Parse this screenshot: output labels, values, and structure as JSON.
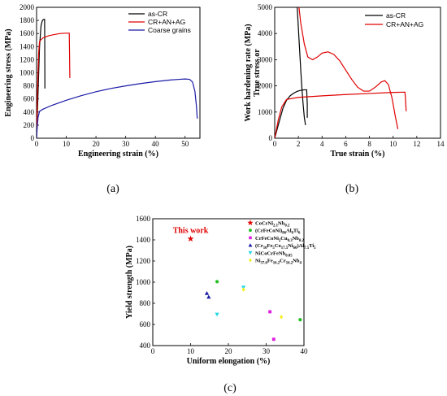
{
  "panel_labels": [
    "(a)",
    "(b)",
    "(c)"
  ],
  "chart_data": [
    {
      "type": "line",
      "xlabel": "Engineering strain (%)",
      "ylabel": "Engineering stress (MPa)",
      "xlim": [
        0,
        55
      ],
      "ylim": [
        0,
        2000
      ],
      "xticks": [
        0,
        10,
        20,
        30,
        40,
        50
      ],
      "yticks": [
        0,
        200,
        400,
        600,
        800,
        1000,
        1200,
        1400,
        1600,
        1800,
        2000
      ],
      "legend_position": "top-right",
      "series": [
        {
          "name": "as-CR",
          "color": "#000000",
          "x": [
            0,
            0.5,
            1.0,
            1.5,
            1.9,
            2.2,
            2.5,
            2.7,
            2.75,
            2.8
          ],
          "y": [
            0,
            700,
            1400,
            1720,
            1790,
            1810,
            1815,
            1815,
            1500,
            760
          ]
        },
        {
          "name": "CR+AN+AG",
          "color": "#e00000",
          "x": [
            0,
            0.3,
            0.7,
            1.0,
            2,
            4,
            6,
            8,
            10,
            11.0,
            11.1,
            11.2
          ],
          "y": [
            0,
            700,
            1300,
            1480,
            1530,
            1565,
            1585,
            1600,
            1605,
            1605,
            1300,
            920
          ]
        },
        {
          "name": "Coarse grains",
          "color": "#1a1aa8",
          "x": [
            0,
            0.2,
            0.5,
            1,
            2,
            5,
            10,
            15,
            20,
            25,
            30,
            35,
            40,
            45,
            48,
            50,
            51.5,
            52.5,
            53.3,
            53.8,
            54.1
          ],
          "y": [
            0,
            150,
            320,
            410,
            440,
            500,
            580,
            650,
            710,
            760,
            800,
            835,
            865,
            890,
            900,
            905,
            900,
            860,
            720,
            500,
            300
          ]
        }
      ]
    },
    {
      "type": "line",
      "xlabel": "True strain (%)",
      "ylabel": "True stress or Work hardening rate (MPa)",
      "ylabel_lines": [
        "True stress or",
        "Work hardening rate (MPa)"
      ],
      "xlim": [
        0,
        14
      ],
      "ylim": [
        0,
        5000
      ],
      "xticks": [
        0,
        2,
        4,
        6,
        8,
        10,
        12,
        14
      ],
      "yticks": [
        0,
        1000,
        2000,
        3000,
        4000,
        5000
      ],
      "legend_position": "top-right",
      "series": [
        {
          "name": "as-CR",
          "color": "#000000",
          "curves": [
            {
              "x": [
                0,
                0.3,
                0.7,
                1.0,
                1.3,
                1.6,
                1.9,
                2.2,
                2.5,
                2.7,
                2.75,
                2.75
              ],
              "y": [
                0,
                500,
                1150,
                1450,
                1620,
                1720,
                1790,
                1830,
                1850,
                1850,
                1300,
                780
              ]
            },
            {
              "x": [
                1.9,
                2.0,
                2.1,
                2.2,
                2.3,
                2.4,
                2.5,
                2.6
              ],
              "y": [
                5000,
                4200,
                3400,
                2600,
                1900,
                1300,
                800,
                500
              ]
            }
          ]
        },
        {
          "name": "CR+AN+AG",
          "color": "#e00000",
          "curves": [
            {
              "x": [
                0,
                0.3,
                0.6,
                1.0,
                2,
                4,
                6,
                8,
                10,
                11,
                11.05,
                11.1
              ],
              "y": [
                0,
                700,
                1200,
                1480,
                1560,
                1620,
                1670,
                1710,
                1750,
                1760,
                1450,
                1030
              ]
            },
            {
              "x": [
                2.05,
                2.2,
                2.5,
                2.8,
                3.2,
                3.6,
                4.0,
                4.5,
                5.0,
                5.5,
                6.0,
                6.5,
                7.0,
                7.5,
                8.0,
                8.5,
                9.0,
                9.3,
                9.6,
                9.9,
                10.2,
                10.4
              ],
              "y": [
                5000,
                4400,
                3600,
                3100,
                3000,
                3100,
                3250,
                3300,
                3200,
                2950,
                2600,
                2250,
                1950,
                1800,
                1800,
                1950,
                2150,
                2200,
                2050,
                1550,
                800,
                350
              ]
            }
          ]
        }
      ]
    },
    {
      "type": "scatter",
      "xlabel": "Uniform elongation (%)",
      "ylabel": "Yield strength (MPa)",
      "xlim": [
        0,
        40
      ],
      "ylim": [
        400,
        1600
      ],
      "xticks": [
        0,
        10,
        20,
        30,
        40
      ],
      "yticks": [
        400,
        600,
        800,
        1000,
        1200,
        1400,
        1600
      ],
      "annotation": "This work",
      "legend_position": "top-right",
      "series": [
        {
          "name": "CoCrNi2.1Nb0.2",
          "name_parts": [
            "CoCrNi",
            "2.1",
            "Nb",
            "0.2"
          ],
          "marker": "star",
          "color": "#e00000",
          "points": [
            [
              10,
              1410
            ]
          ]
        },
        {
          "name": "(CrFeCoNi)86Al8Ti6",
          "name_parts": [
            "(CrFeCoNi)",
            "86",
            "Al",
            "8",
            "Ti",
            "6"
          ],
          "marker": "circle",
          "color": "#22c022",
          "points": [
            [
              17,
              1005
            ],
            [
              39,
              645
            ]
          ]
        },
        {
          "name": "CrFeCoNi2Cu0.3Nb0.2",
          "name_parts": [
            "CrFeCoNi",
            "2",
            "Cu",
            "0.3",
            "Nb",
            "0.2"
          ],
          "marker": "square",
          "color": "#e020e0",
          "points": [
            [
              31,
              720
            ],
            [
              32,
              460
            ]
          ]
        },
        {
          "name": "(Cr10Fe5Co17.5Ni60)Al7.5Ti5",
          "name_parts": [
            "(Cr",
            "10",
            "Fe",
            "5",
            "Co",
            "17.5",
            "Ni",
            "60",
            ")Al",
            "7.5",
            "Ti",
            "5"
          ],
          "marker": "triangle-up",
          "color": "#1a1aa8",
          "points": [
            [
              14.3,
              895
            ],
            [
              14.8,
              860
            ]
          ]
        },
        {
          "name": "NiCoCrFeNb0.05",
          "name_parts": [
            "NiCoCrFeNb",
            "0.05"
          ],
          "marker": "triangle-down",
          "color": "#22d8e8",
          "points": [
            [
              24,
              950
            ],
            [
              17,
              695
            ]
          ]
        },
        {
          "name": "Ni37.6Fe16.2Cr16.2Nb4",
          "name_parts": [
            "Ni",
            "37.6",
            "Fe",
            "16.2",
            "Cr",
            "16.2",
            "Nb",
            "4"
          ],
          "marker": "diamond",
          "color": "#f0f020",
          "points": [
            [
              24,
              930
            ],
            [
              34,
              670
            ]
          ]
        }
      ]
    }
  ]
}
